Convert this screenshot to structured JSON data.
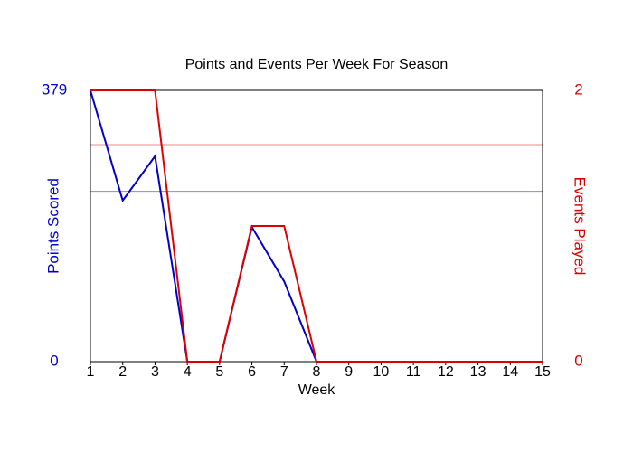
{
  "chart_data": {
    "type": "line",
    "title": "Points and Events Per Week For Season",
    "xlabel": "Week",
    "x": [
      1,
      2,
      3,
      4,
      5,
      6,
      7,
      8,
      9,
      10,
      11,
      12,
      13,
      14,
      15
    ],
    "xlim": [
      1,
      15
    ],
    "xticks": [
      1,
      2,
      3,
      4,
      5,
      6,
      7,
      8,
      9,
      10,
      11,
      12,
      13,
      14,
      15
    ],
    "ylim": [
      0,
      379
    ],
    "yticks": [
      0,
      379
    ],
    "y2lim": [
      0,
      2
    ],
    "y2ticks": [
      0,
      2
    ],
    "series": [
      {
        "name": "Points Scored",
        "color": "#0000cc",
        "values": [
          379,
          225,
          287,
          0,
          0,
          188,
          112,
          0,
          0,
          0,
          0,
          0,
          0,
          0,
          0
        ]
      },
      {
        "name": "Events Played",
        "color": "#dd0000",
        "axis": "y2",
        "values": [
          2,
          2,
          2,
          0,
          0,
          1,
          1,
          0,
          0,
          0,
          0,
          0,
          0,
          0,
          0
        ]
      }
    ],
    "average_lines": [
      {
        "axis": "y",
        "value": 238,
        "color": "#8888dd"
      },
      {
        "axis": "y2",
        "value": 1.6,
        "color": "#ee8888"
      }
    ]
  }
}
